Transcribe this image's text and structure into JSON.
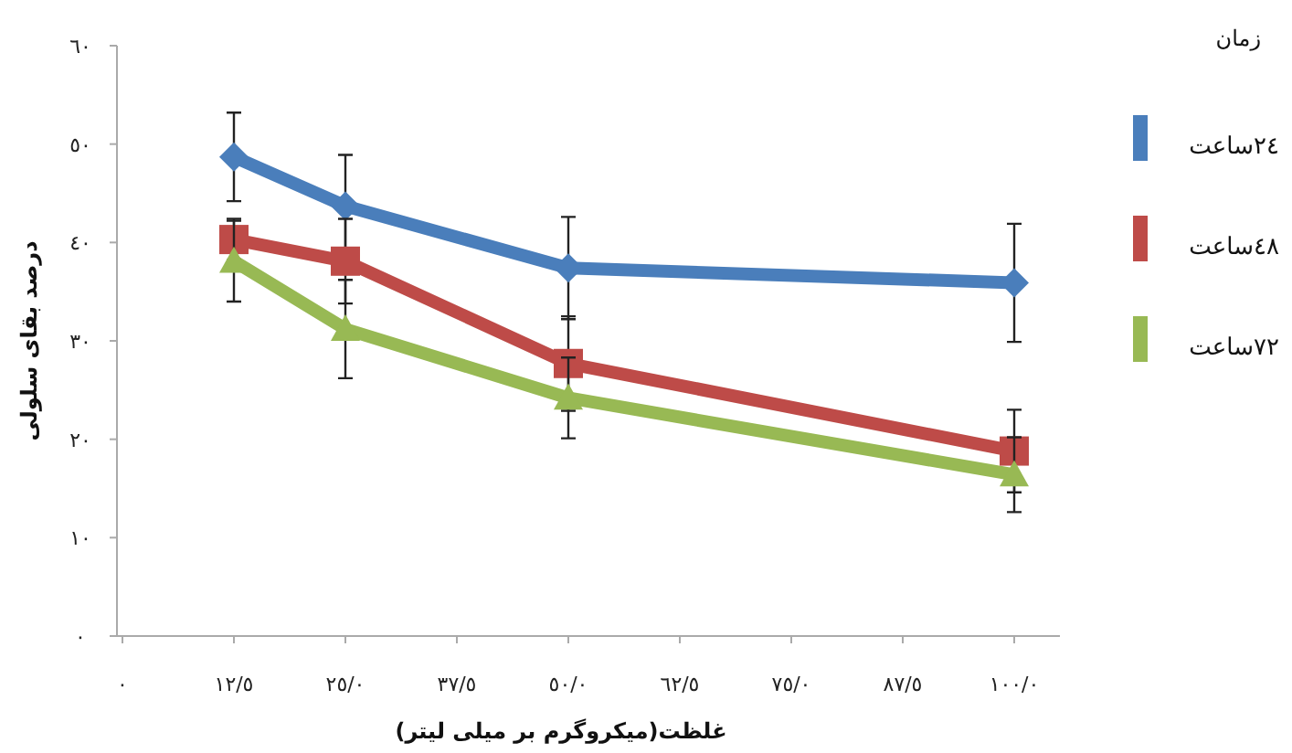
{
  "chart_data": {
    "type": "line",
    "categories": [
      "٠",
      "١٢/٥",
      "٢٥/٠",
      "٣٧/٥",
      "٥٠/٠",
      "٦٢/٥",
      "٧٥/٠",
      "٨٧/٥",
      "١٠٠/٠"
    ],
    "xlabel": "غلظت(میکروگرم بر میلی لیتر)",
    "ylabel": "درصد بقای سلولی",
    "legend_title": "زمان",
    "ylim": [
      0,
      60
    ],
    "yticks": [
      {
        "value": 0,
        "label": "٠"
      },
      {
        "value": 10,
        "label": "١٠"
      },
      {
        "value": 20,
        "label": "٢٠"
      },
      {
        "value": 30,
        "label": "٣٠"
      },
      {
        "value": 40,
        "label": "٤٠"
      },
      {
        "value": 50,
        "label": "٥٠"
      },
      {
        "value": 60,
        "label": "٦٠"
      }
    ],
    "series": [
      {
        "name": "٢٤ساعت",
        "color": "#4a7ebb",
        "marker": "diamond",
        "values": [
          null,
          48.7,
          43.7,
          null,
          37.4,
          null,
          null,
          null,
          35.9
        ],
        "errors": [
          null,
          4.5,
          5.2,
          null,
          5.2,
          null,
          null,
          null,
          6
        ]
      },
      {
        "name": "٤٨ساعت",
        "color": "#be4b48",
        "marker": "square",
        "values": [
          null,
          40.3,
          38.1,
          null,
          27.7,
          null,
          null,
          null,
          18.8
        ],
        "errors": [
          null,
          2.1,
          4.3,
          null,
          4.8,
          null,
          null,
          null,
          4.2
        ]
      },
      {
        "name": "٧٢ساعت",
        "color": "#98b954",
        "marker": "triangle",
        "values": [
          null,
          38.1,
          31.2,
          null,
          24.2,
          null,
          null,
          null,
          16.4
        ],
        "errors": [
          null,
          4.1,
          5,
          null,
          4.1,
          null,
          null,
          null,
          3.8
        ]
      }
    ],
    "legend": "right",
    "line_style": "solid"
  }
}
